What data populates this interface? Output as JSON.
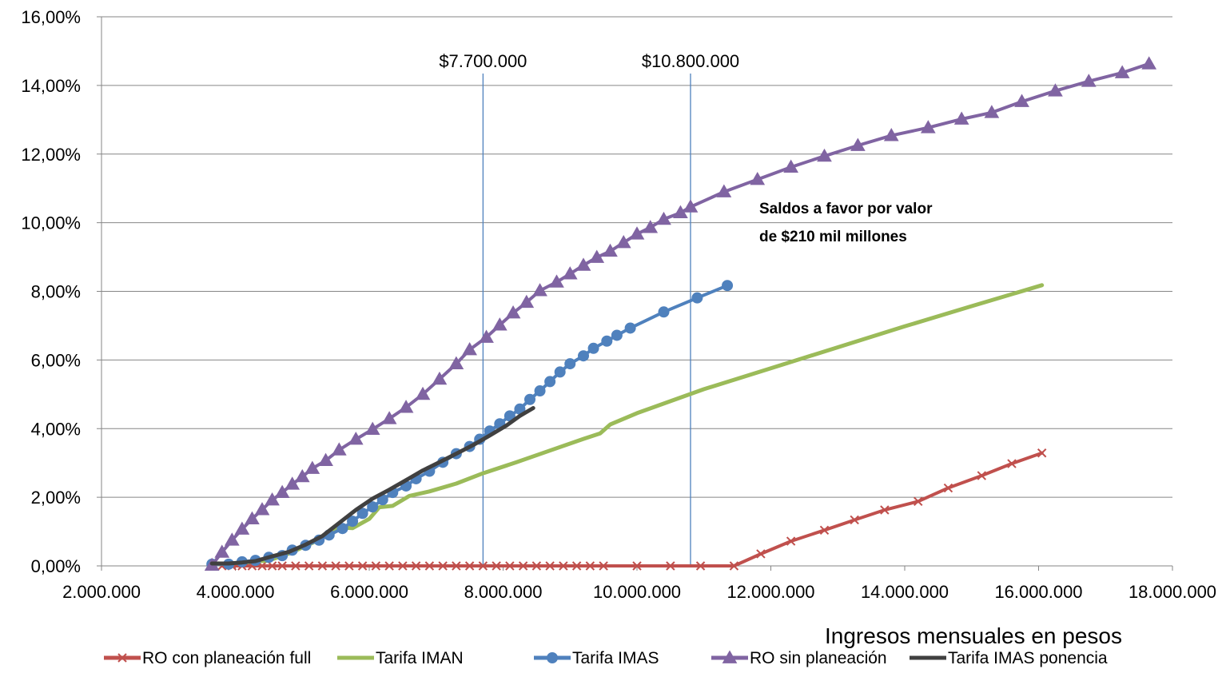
{
  "chart_data": {
    "type": "line",
    "title": "",
    "xlabel": "Ingresos mensuales  en pesos",
    "ylabel": "",
    "xlim": [
      2000000,
      18000000
    ],
    "ylim": [
      0,
      0.16
    ],
    "x_ticks": [
      2000000,
      4000000,
      6000000,
      8000000,
      10000000,
      12000000,
      14000000,
      16000000,
      18000000
    ],
    "x_tick_labels": [
      "2.000.000",
      "4.000.000",
      "6.000.000",
      "8.000.000",
      "10.000.000",
      "12.000.000",
      "14.000.000",
      "16.000.000",
      "18.000.000"
    ],
    "y_ticks": [
      0,
      0.02,
      0.04,
      0.06,
      0.08,
      0.1,
      0.12,
      0.14,
      0.16
    ],
    "y_tick_labels": [
      "0,00%",
      "2,00%",
      "4,00%",
      "6,00%",
      "8,00%",
      "10,00%",
      "12,00%",
      "14,00%",
      "16,00%"
    ],
    "grid": "horizontal",
    "legend_position": "bottom",
    "vertical_lines": [
      {
        "x": 7700000,
        "label": "$7.700.000"
      },
      {
        "x": 10800000,
        "label": "$10.800.000"
      }
    ],
    "annotation": [
      "Saldos a favor por valor",
      "de $210 mil millones"
    ],
    "series": [
      {
        "name": "RO con planeación full",
        "color": "#c0504d",
        "marker": "x",
        "points": [
          [
            3800000,
            0
          ],
          [
            3950000,
            0
          ],
          [
            4100000,
            0
          ],
          [
            4250000,
            0
          ],
          [
            4400000,
            0
          ],
          [
            4550000,
            0
          ],
          [
            4700000,
            0
          ],
          [
            4900000,
            0
          ],
          [
            5100000,
            0
          ],
          [
            5300000,
            0
          ],
          [
            5500000,
            0
          ],
          [
            5700000,
            0
          ],
          [
            5900000,
            0
          ],
          [
            6100000,
            0
          ],
          [
            6300000,
            0
          ],
          [
            6500000,
            0
          ],
          [
            6700000,
            0
          ],
          [
            6900000,
            0
          ],
          [
            7100000,
            0
          ],
          [
            7300000,
            0
          ],
          [
            7500000,
            0
          ],
          [
            7700000,
            0
          ],
          [
            7900000,
            0
          ],
          [
            8100000,
            0
          ],
          [
            8300000,
            0
          ],
          [
            8500000,
            0
          ],
          [
            8700000,
            0
          ],
          [
            8900000,
            0
          ],
          [
            9100000,
            0
          ],
          [
            9300000,
            0
          ],
          [
            9500000,
            0
          ],
          [
            10000000,
            0
          ],
          [
            10500000,
            0
          ],
          [
            10950000,
            0
          ],
          [
            11450000,
            0
          ],
          [
            11850000,
            0.0035
          ],
          [
            12300000,
            0.0072
          ],
          [
            12800000,
            0.0104
          ],
          [
            13250000,
            0.0134
          ],
          [
            13700000,
            0.0163
          ],
          [
            14200000,
            0.0188
          ],
          [
            14650000,
            0.0227
          ],
          [
            15150000,
            0.0263
          ],
          [
            15600000,
            0.0298
          ],
          [
            16050000,
            0.0329
          ]
        ]
      },
      {
        "name": "Tarifa IMAN",
        "color": "#9bbb59",
        "marker": "none",
        "points": [
          [
            3650000,
            0.0005
          ],
          [
            3900000,
            0.0007
          ],
          [
            4200000,
            0.0011
          ],
          [
            4500000,
            0.0016
          ],
          [
            4800000,
            0.0036
          ],
          [
            5150000,
            0.0067
          ],
          [
            5550000,
            0.0112
          ],
          [
            5750000,
            0.011
          ],
          [
            6000000,
            0.0137
          ],
          [
            6150000,
            0.0171
          ],
          [
            6350000,
            0.0175
          ],
          [
            6600000,
            0.0204
          ],
          [
            6900000,
            0.0217
          ],
          [
            7300000,
            0.024
          ],
          [
            7700000,
            0.027
          ],
          [
            8200000,
            0.0302
          ],
          [
            8700000,
            0.0336
          ],
          [
            9200000,
            0.037
          ],
          [
            9450000,
            0.0386
          ],
          [
            9600000,
            0.0412
          ],
          [
            10000000,
            0.0445
          ],
          [
            10500000,
            0.048
          ],
          [
            11000000,
            0.0515
          ],
          [
            12000000,
            0.0576
          ],
          [
            13000000,
            0.0637
          ],
          [
            14000000,
            0.0698
          ],
          [
            15000000,
            0.0757
          ],
          [
            16050000,
            0.0818
          ]
        ]
      },
      {
        "name": "Tarifa IMAS",
        "color": "#4f81bd",
        "marker": "circle",
        "points": [
          [
            3650000,
            0.0005
          ],
          [
            3900000,
            0.0005
          ],
          [
            4100000,
            0.0012
          ],
          [
            4300000,
            0.0016
          ],
          [
            4500000,
            0.0025
          ],
          [
            4700000,
            0.003
          ],
          [
            4850000,
            0.0046
          ],
          [
            5050000,
            0.006
          ],
          [
            5250000,
            0.0075
          ],
          [
            5400000,
            0.009
          ],
          [
            5600000,
            0.0109
          ],
          [
            5750000,
            0.013
          ],
          [
            5900000,
            0.0153
          ],
          [
            6050000,
            0.0172
          ],
          [
            6200000,
            0.0193
          ],
          [
            6350000,
            0.0214
          ],
          [
            6550000,
            0.0233
          ],
          [
            6700000,
            0.0254
          ],
          [
            6900000,
            0.0276
          ],
          [
            7100000,
            0.0302
          ],
          [
            7300000,
            0.0327
          ],
          [
            7500000,
            0.0348
          ],
          [
            7650000,
            0.0369
          ],
          [
            7800000,
            0.0393
          ],
          [
            7950000,
            0.0414
          ],
          [
            8100000,
            0.0437
          ],
          [
            8250000,
            0.0457
          ],
          [
            8400000,
            0.0485
          ],
          [
            8550000,
            0.051
          ],
          [
            8700000,
            0.0537
          ],
          [
            8850000,
            0.0565
          ],
          [
            9000000,
            0.0589
          ],
          [
            9200000,
            0.0612
          ],
          [
            9350000,
            0.0634
          ],
          [
            9550000,
            0.0655
          ],
          [
            9700000,
            0.0672
          ],
          [
            9900000,
            0.0693
          ],
          [
            10400000,
            0.074
          ],
          [
            10900000,
            0.0781
          ],
          [
            11350000,
            0.0817
          ]
        ]
      },
      {
        "name": "RO sin planeación",
        "color": "#8064a2",
        "marker": "triangle",
        "points": [
          [
            3650000,
            0.0002
          ],
          [
            3800000,
            0.004
          ],
          [
            3950000,
            0.0075
          ],
          [
            4100000,
            0.0107
          ],
          [
            4250000,
            0.0137
          ],
          [
            4400000,
            0.0164
          ],
          [
            4550000,
            0.0192
          ],
          [
            4700000,
            0.0214
          ],
          [
            4850000,
            0.0238
          ],
          [
            5000000,
            0.026
          ],
          [
            5150000,
            0.0284
          ],
          [
            5350000,
            0.0307
          ],
          [
            5550000,
            0.0338
          ],
          [
            5800000,
            0.0369
          ],
          [
            6050000,
            0.0398
          ],
          [
            6300000,
            0.0429
          ],
          [
            6550000,
            0.0462
          ],
          [
            6800000,
            0.05
          ],
          [
            7050000,
            0.0544
          ],
          [
            7300000,
            0.0589
          ],
          [
            7500000,
            0.063
          ],
          [
            7750000,
            0.0666
          ],
          [
            7950000,
            0.0702
          ],
          [
            8150000,
            0.0737
          ],
          [
            8350000,
            0.0768
          ],
          [
            8550000,
            0.0802
          ],
          [
            8800000,
            0.0827
          ],
          [
            9000000,
            0.0851
          ],
          [
            9200000,
            0.0876
          ],
          [
            9400000,
            0.0899
          ],
          [
            9600000,
            0.0917
          ],
          [
            9800000,
            0.0942
          ],
          [
            10000000,
            0.0967
          ],
          [
            10200000,
            0.0986
          ],
          [
            10400000,
            0.101
          ],
          [
            10650000,
            0.1029
          ],
          [
            10800000,
            0.1046
          ],
          [
            11300000,
            0.109
          ],
          [
            11800000,
            0.1126
          ],
          [
            12300000,
            0.1162
          ],
          [
            12800000,
            0.1194
          ],
          [
            13300000,
            0.1225
          ],
          [
            13800000,
            0.1254
          ],
          [
            14350000,
            0.1277
          ],
          [
            14850000,
            0.1302
          ],
          [
            15300000,
            0.1321
          ],
          [
            15750000,
            0.1353
          ],
          [
            16250000,
            0.1384
          ],
          [
            16750000,
            0.1412
          ],
          [
            17250000,
            0.1437
          ],
          [
            17650000,
            0.1463
          ]
        ]
      },
      {
        "name": "Tarifa IMAS ponencia",
        "color": "#404040",
        "marker": "none",
        "points": [
          [
            3650000,
            0.0007
          ],
          [
            3900000,
            0.0007
          ],
          [
            4100000,
            0.001
          ],
          [
            4300000,
            0.0014
          ],
          [
            4550000,
            0.0028
          ],
          [
            4800000,
            0.0041
          ],
          [
            5050000,
            0.0062
          ],
          [
            5300000,
            0.0087
          ],
          [
            5550000,
            0.0125
          ],
          [
            5800000,
            0.0163
          ],
          [
            6050000,
            0.0196
          ],
          [
            6300000,
            0.0222
          ],
          [
            6550000,
            0.025
          ],
          [
            6800000,
            0.0278
          ],
          [
            7050000,
            0.0302
          ],
          [
            7300000,
            0.0327
          ],
          [
            7550000,
            0.0352
          ],
          [
            7800000,
            0.038
          ],
          [
            8050000,
            0.0409
          ],
          [
            8250000,
            0.0437
          ],
          [
            8450000,
            0.046
          ]
        ]
      }
    ]
  }
}
